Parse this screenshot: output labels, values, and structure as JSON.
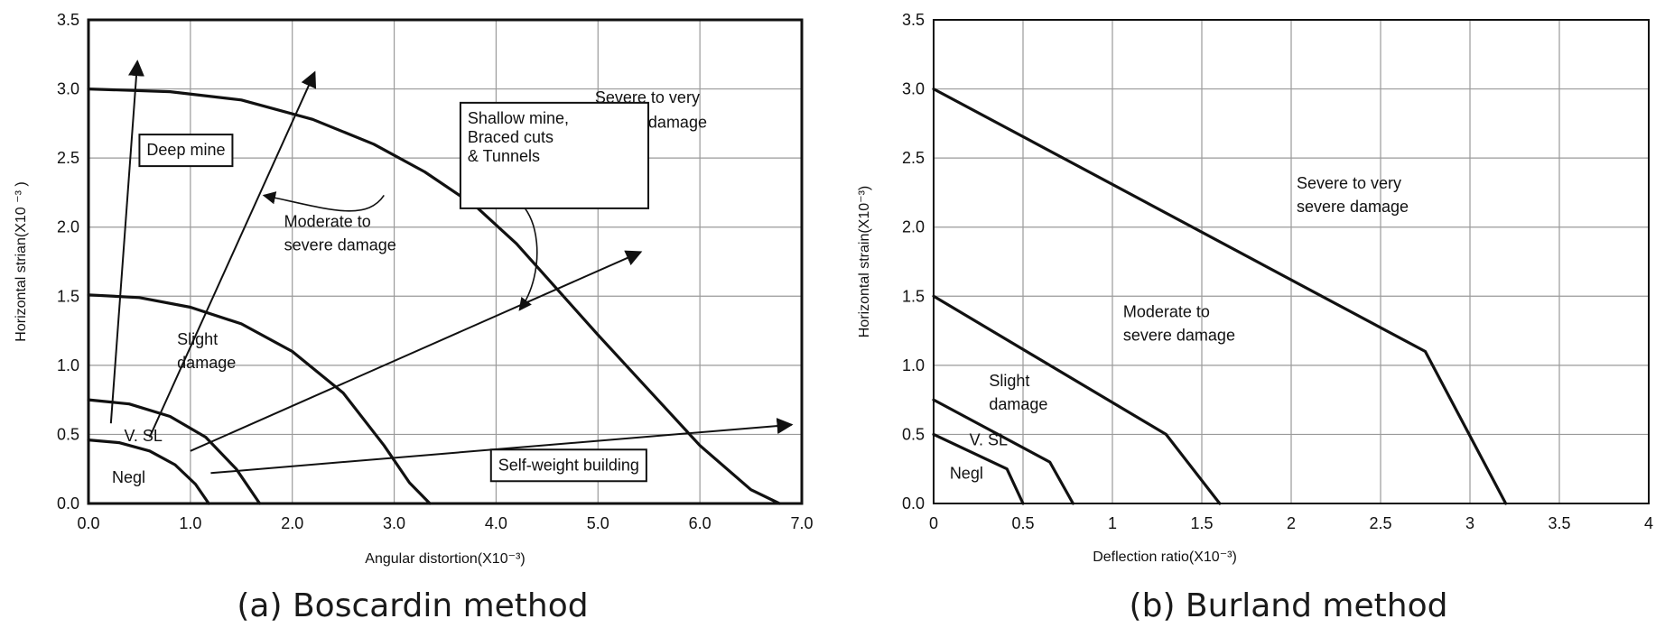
{
  "chart_data": [
    {
      "type": "line",
      "caption": "(a) Boscardin method",
      "xlabel": "Angular distortion(X10⁻³)",
      "ylabel": "Horizontal strian(X10  ⁻³ )",
      "xlim": [
        0,
        7
      ],
      "ylim": [
        0,
        3.5
      ],
      "x_ticks": [
        "0.0",
        "1.0",
        "2.0",
        "3.0",
        "4.0",
        "5.0",
        "6.0",
        "7.0"
      ],
      "y_ticks": [
        "0.0",
        "0.5",
        "1.0",
        "1.5",
        "2.0",
        "2.5",
        "3.0",
        "3.5"
      ],
      "grid": true,
      "boundaries": [
        {
          "name": "negligible-limit",
          "points": [
            [
              0,
              0.46
            ],
            [
              0.3,
              0.44
            ],
            [
              0.6,
              0.38
            ],
            [
              0.85,
              0.28
            ],
            [
              1.05,
              0.14
            ],
            [
              1.18,
              0
            ]
          ]
        },
        {
          "name": "very-slight-limit",
          "points": [
            [
              0,
              0.75
            ],
            [
              0.4,
              0.72
            ],
            [
              0.8,
              0.63
            ],
            [
              1.15,
              0.48
            ],
            [
              1.45,
              0.25
            ],
            [
              1.68,
              0
            ]
          ]
        },
        {
          "name": "slight-limit",
          "points": [
            [
              0,
              1.51
            ],
            [
              0.5,
              1.49
            ],
            [
              1.0,
              1.42
            ],
            [
              1.5,
              1.3
            ],
            [
              2.0,
              1.1
            ],
            [
              2.5,
              0.8
            ],
            [
              2.9,
              0.42
            ],
            [
              3.15,
              0.15
            ],
            [
              3.35,
              0
            ]
          ]
        },
        {
          "name": "moderate-limit",
          "points": [
            [
              0,
              3.0
            ],
            [
              0.8,
              2.98
            ],
            [
              1.5,
              2.92
            ],
            [
              2.2,
              2.78
            ],
            [
              2.8,
              2.6
            ],
            [
              3.3,
              2.4
            ],
            [
              3.8,
              2.15
            ],
            [
              4.2,
              1.88
            ],
            [
              4.6,
              1.55
            ],
            [
              5.0,
              1.22
            ],
            [
              5.5,
              0.82
            ],
            [
              6.0,
              0.42
            ],
            [
              6.5,
              0.1
            ],
            [
              6.78,
              0
            ]
          ]
        }
      ],
      "arrows": [
        {
          "label": "Deep mine",
          "from": [
            0.22,
            0.58
          ],
          "to": [
            0.48,
            3.2
          ]
        },
        {
          "label": "Shallow mine, Braced cuts & Tunnels",
          "from": [
            0.6,
            0.48
          ],
          "to": [
            2.22,
            3.12
          ]
        },
        {
          "label": "Shallow mine, Braced cuts & Tunnels",
          "from": [
            1.0,
            0.38
          ],
          "to": [
            5.42,
            1.82
          ]
        },
        {
          "label": "Self-weight building",
          "from": [
            1.2,
            0.22
          ],
          "to": [
            6.9,
            0.57
          ]
        }
      ],
      "regions": [
        {
          "text": "Negl",
          "x": 0.23,
          "y": 0.15
        },
        {
          "text": "V. SL",
          "x": 0.35,
          "y": 0.45
        },
        {
          "text": "Slight",
          "x": 0.87,
          "y": 1.15
        },
        {
          "text": "damage",
          "x": 0.87,
          "y": 0.98
        },
        {
          "text": "Moderate to",
          "x": 1.92,
          "y": 2.0
        },
        {
          "text": "severe damage",
          "x": 1.92,
          "y": 1.83
        },
        {
          "text": "Severe to very",
          "x": 4.97,
          "y": 2.9
        },
        {
          "text": "severe damage",
          "x": 4.97,
          "y": 2.72
        }
      ],
      "boxes": [
        {
          "lines": [
            "Deep mine"
          ],
          "x": 0.5,
          "y": 2.67
        },
        {
          "lines": [
            "Shallow mine,",
            "Braced cuts",
            "& Tunnels"
          ],
          "x": 3.65,
          "y": 2.9
        },
        {
          "lines": [
            "Self-weight building"
          ],
          "x": 3.95,
          "y": 0.39
        }
      ],
      "connectors": [
        {
          "label": "Shallow mine, Braced cuts & Tunnels",
          "from": [
            2.9,
            2.23
          ],
          "to": [
            1.72,
            2.23
          ]
        },
        {
          "label": "Shallow mine, Braced cuts & Tunnels",
          "from": [
            4.1,
            2.23
          ],
          "to": [
            4.23,
            1.4
          ]
        }
      ]
    },
    {
      "type": "line",
      "caption": "(b) Burland method",
      "xlabel": "Deflection ratio(X10⁻³)",
      "ylabel": "Horizontal strain(X10⁻³)",
      "xlim": [
        0,
        4
      ],
      "ylim": [
        0,
        3.5
      ],
      "x_ticks": [
        "0",
        "0.5",
        "1",
        "1.5",
        "2",
        "2.5",
        "3",
        "3.5",
        "4"
      ],
      "y_ticks": [
        "0.0",
        "0.5",
        "1.0",
        "1.5",
        "2.0",
        "2.5",
        "3.0",
        "3.5"
      ],
      "grid": true,
      "boundaries": [
        {
          "name": "negligible-limit",
          "points": [
            [
              0,
              0.5
            ],
            [
              0.41,
              0.25
            ],
            [
              0.5,
              0
            ]
          ]
        },
        {
          "name": "very-slight-limit",
          "points": [
            [
              0,
              0.75
            ],
            [
              0.65,
              0.3
            ],
            [
              0.78,
              0
            ]
          ]
        },
        {
          "name": "slight-limit",
          "points": [
            [
              0,
              1.5
            ],
            [
              1.3,
              0.5
            ],
            [
              1.6,
              0
            ]
          ]
        },
        {
          "name": "moderate-limit",
          "points": [
            [
              0,
              3.0
            ],
            [
              2.75,
              1.1
            ],
            [
              3.2,
              0
            ]
          ]
        }
      ],
      "regions": [
        {
          "text": "Negl",
          "x": 0.09,
          "y": 0.18
        },
        {
          "text": "V. SL",
          "x": 0.2,
          "y": 0.42
        },
        {
          "text": "Slight",
          "x": 0.31,
          "y": 0.85
        },
        {
          "text": "damage",
          "x": 0.31,
          "y": 0.68
        },
        {
          "text": "Moderate to",
          "x": 1.06,
          "y": 1.35
        },
        {
          "text": "severe damage",
          "x": 1.06,
          "y": 1.18
        },
        {
          "text": "Severe to very",
          "x": 2.03,
          "y": 2.28
        },
        {
          "text": "severe damage",
          "x": 2.03,
          "y": 2.11
        }
      ]
    }
  ]
}
